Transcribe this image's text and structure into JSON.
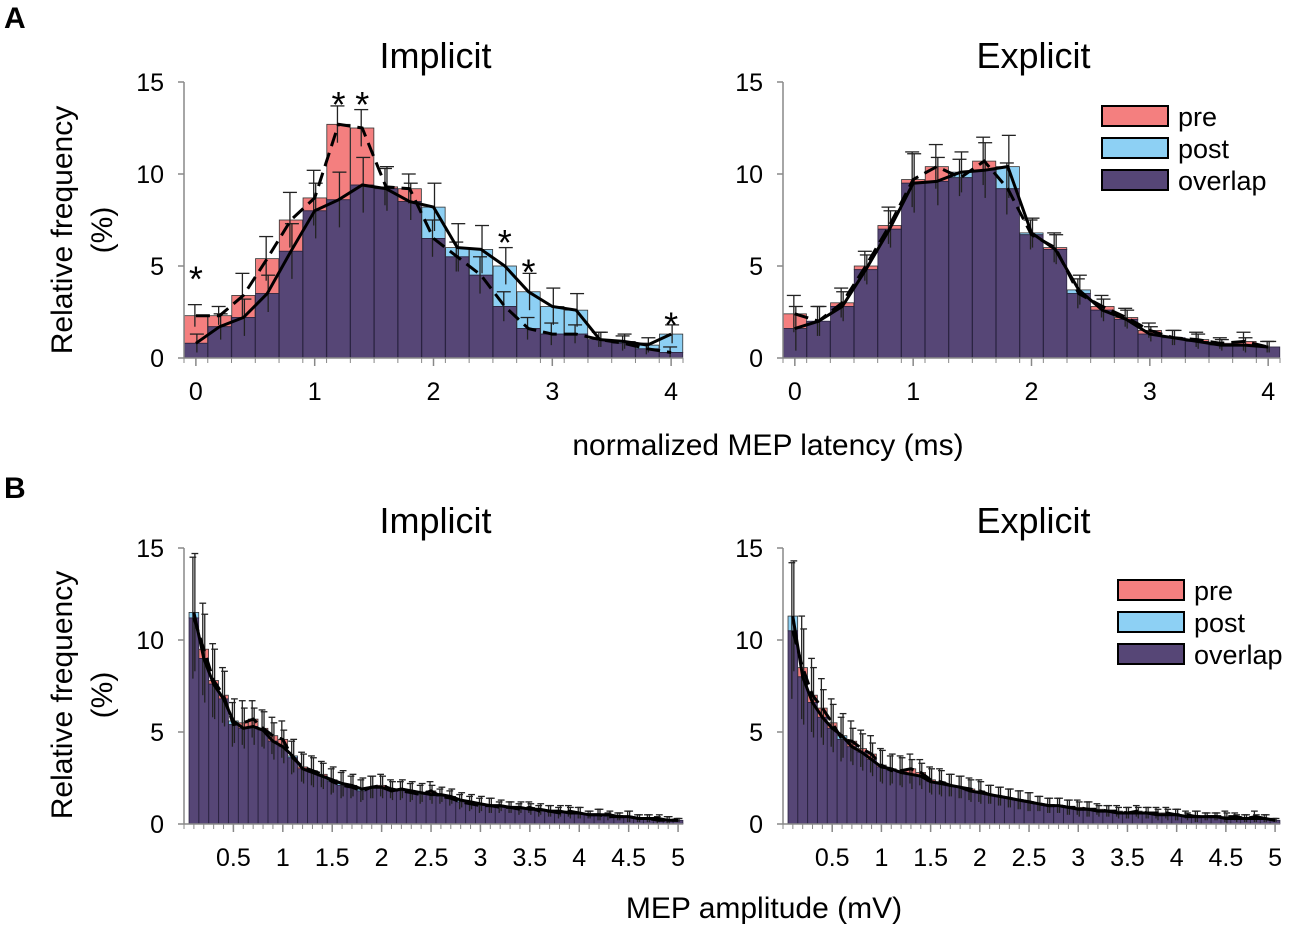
{
  "figure": {
    "panel_a_label": "A",
    "panel_b_label": "B",
    "ylabel_line1": "Relative frequency",
    "ylabel_line2": "(%)",
    "xlabel_a": "normalized MEP latency (ms)",
    "xlabel_b": "MEP amplitude (mV)",
    "legend": [
      "pre",
      "post",
      "overlap"
    ]
  },
  "colors": {
    "pre": "#f47f7f",
    "post": "#8dd0f4",
    "overlap": "#564676"
  },
  "chart_data": [
    {
      "id": "A-implicit",
      "type": "bar",
      "title": "Implicit",
      "ylim": [
        0,
        15
      ],
      "yticks": [
        0,
        5,
        10,
        15
      ],
      "xlim": [
        -0.1,
        4.1
      ],
      "xticks": [
        0,
        1,
        2,
        3,
        4
      ],
      "xticklabels": [
        "0",
        "1",
        "2",
        "3",
        "4"
      ],
      "bin_width": 0.2,
      "x": [
        0,
        0.2,
        0.4,
        0.6,
        0.8,
        1.0,
        1.2,
        1.4,
        1.6,
        1.8,
        2.0,
        2.2,
        2.4,
        2.6,
        2.8,
        3.0,
        3.2,
        3.4,
        3.6,
        3.8,
        4.0
      ],
      "series": [
        {
          "name": "pre",
          "values": [
            2.3,
            2.3,
            3.4,
            5.4,
            7.5,
            8.7,
            12.7,
            12.5,
            9.3,
            9.2,
            6.5,
            5.5,
            4.5,
            2.8,
            1.6,
            1.3,
            1.3,
            1.0,
            0.8,
            0.5,
            0.3
          ],
          "error": [
            0.6,
            0.5,
            1.2,
            1.2,
            1.5,
            1.5,
            1.0,
            1.0,
            1.0,
            0.8,
            1.0,
            0.8,
            1.0,
            0.8,
            0.6,
            0.6,
            0.5,
            0.4,
            0.4,
            0.3,
            0.3
          ]
        },
        {
          "name": "post",
          "values": [
            0.8,
            1.7,
            2.2,
            3.5,
            5.8,
            8.0,
            8.6,
            9.4,
            9.2,
            8.5,
            8.2,
            6.0,
            5.9,
            5.0,
            3.6,
            2.8,
            2.6,
            1.0,
            0.9,
            0.7,
            1.3
          ],
          "error": [
            0.5,
            0.7,
            1.0,
            1.0,
            1.5,
            1.5,
            1.5,
            1.5,
            1.2,
            1.0,
            1.3,
            1.3,
            1.3,
            1.0,
            1.0,
            1.0,
            0.9,
            0.4,
            0.4,
            0.4,
            0.5
          ]
        }
      ],
      "annotations": [
        {
          "x": 0,
          "y": 4.8,
          "text": "*"
        },
        {
          "x": 1.2,
          "y": 14.3,
          "text": "*"
        },
        {
          "x": 1.4,
          "y": 14.3,
          "text": "*"
        },
        {
          "x": 2.6,
          "y": 6.8,
          "text": "*"
        },
        {
          "x": 2.8,
          "y": 5.2,
          "text": "*"
        },
        {
          "x": 4.0,
          "y": 2.3,
          "text": "*"
        }
      ],
      "legend": false
    },
    {
      "id": "A-explicit",
      "type": "bar",
      "title": "Explicit",
      "ylim": [
        0,
        15
      ],
      "yticks": [
        0,
        5,
        10,
        15
      ],
      "xlim": [
        -0.1,
        4.1
      ],
      "xticks": [
        0,
        1,
        2,
        3,
        4
      ],
      "xticklabels": [
        "0",
        "1",
        "2",
        "3",
        "4"
      ],
      "bin_width": 0.2,
      "x": [
        0,
        0.2,
        0.4,
        0.6,
        0.8,
        1.0,
        1.2,
        1.4,
        1.6,
        1.8,
        2.0,
        2.2,
        2.4,
        2.6,
        2.8,
        3.0,
        3.2,
        3.4,
        3.6,
        3.8,
        4.0
      ],
      "series": [
        {
          "name": "pre",
          "values": [
            2.4,
            2.0,
            3.0,
            5.0,
            7.2,
            9.7,
            10.4,
            9.8,
            10.7,
            9.2,
            6.7,
            6.0,
            3.5,
            2.8,
            2.2,
            1.5,
            1.1,
            1.0,
            0.8,
            0.9,
            0.6
          ],
          "error": [
            1.0,
            0.8,
            0.8,
            0.8,
            1.0,
            1.5,
            1.2,
            1.0,
            1.3,
            1.4,
            0.8,
            0.8,
            0.8,
            0.6,
            0.5,
            0.4,
            0.4,
            0.4,
            0.3,
            0.5,
            0.3
          ]
        },
        {
          "name": "post",
          "values": [
            1.6,
            2.0,
            2.8,
            4.8,
            7.0,
            9.5,
            9.6,
            10.1,
            10.2,
            10.4,
            6.8,
            5.9,
            3.7,
            2.6,
            2.1,
            1.3,
            1.1,
            0.9,
            0.7,
            0.7,
            0.6
          ],
          "error": [
            1.2,
            0.8,
            0.8,
            0.8,
            1.0,
            1.6,
            1.3,
            1.1,
            1.5,
            1.7,
            0.8,
            0.8,
            0.8,
            0.6,
            0.5,
            0.4,
            0.4,
            0.4,
            0.3,
            0.4,
            0.3
          ]
        }
      ],
      "annotations": [],
      "legend": true
    },
    {
      "id": "B-implicit",
      "type": "bar",
      "title": "Implicit",
      "ylim": [
        0,
        15
      ],
      "yticks": [
        0,
        5,
        10,
        15
      ],
      "xlim": [
        0,
        5.05
      ],
      "xticks": [
        0.5,
        1,
        1.5,
        2,
        2.5,
        3,
        3.5,
        4,
        4.5,
        5
      ],
      "xticklabels": [
        "0.5",
        "1",
        "1.5",
        "2",
        "2.5",
        "3",
        "3.5",
        "4",
        "4.5",
        "5"
      ],
      "bin_width": 0.1,
      "x": [
        0.1,
        0.2,
        0.3,
        0.4,
        0.5,
        0.6,
        0.7,
        0.8,
        0.9,
        1.0,
        1.1,
        1.2,
        1.3,
        1.4,
        1.5,
        1.6,
        1.7,
        1.8,
        1.9,
        2.0,
        2.1,
        2.2,
        2.3,
        2.4,
        2.5,
        2.6,
        2.7,
        2.8,
        2.9,
        3.0,
        3.1,
        3.2,
        3.3,
        3.4,
        3.5,
        3.6,
        3.7,
        3.8,
        3.9,
        4.0,
        4.1,
        4.2,
        4.3,
        4.4,
        4.5,
        4.6,
        4.7,
        4.8,
        4.9,
        5.0
      ],
      "series": [
        {
          "name": "pre",
          "values": [
            11.2,
            9.5,
            7.8,
            7.0,
            5.4,
            5.5,
            5.7,
            5.2,
            4.8,
            4.6,
            3.6,
            3.1,
            2.9,
            2.7,
            2.3,
            2.1,
            2.0,
            1.8,
            2.0,
            2.1,
            1.9,
            1.8,
            1.7,
            1.6,
            1.8,
            1.5,
            1.4,
            1.2,
            1.1,
            1.0,
            1.0,
            0.9,
            0.9,
            0.8,
            0.9,
            0.7,
            0.7,
            0.6,
            0.7,
            0.6,
            0.5,
            0.5,
            0.4,
            0.4,
            0.4,
            0.3,
            0.3,
            0.2,
            0.2,
            0.2
          ],
          "error": [
            3.3,
            2.5,
            2.0,
            1.5,
            1.2,
            1.2,
            1.0,
            1.0,
            1.0,
            1.0,
            0.9,
            0.8,
            0.8,
            0.7,
            0.7,
            0.7,
            0.6,
            0.6,
            0.6,
            0.6,
            0.5,
            0.5,
            0.5,
            0.5,
            0.5,
            0.4,
            0.4,
            0.4,
            0.4,
            0.4,
            0.4,
            0.3,
            0.3,
            0.3,
            0.3,
            0.3,
            0.3,
            0.3,
            0.3,
            0.3,
            0.2,
            0.3,
            0.2,
            0.2,
            0.3,
            0.2,
            0.2,
            0.2,
            0.2,
            0.1
          ]
        },
        {
          "name": "post",
          "values": [
            11.5,
            9.0,
            7.6,
            6.8,
            5.6,
            5.2,
            5.3,
            5.1,
            4.5,
            4.2,
            3.7,
            3.0,
            2.8,
            2.6,
            2.4,
            2.2,
            2.1,
            1.9,
            2.0,
            2.0,
            1.8,
            1.9,
            1.8,
            1.7,
            1.6,
            1.6,
            1.5,
            1.3,
            1.2,
            1.1,
            1.0,
            1.0,
            0.9,
            0.9,
            0.8,
            0.8,
            0.7,
            0.7,
            0.6,
            0.6,
            0.5,
            0.5,
            0.5,
            0.4,
            0.4,
            0.3,
            0.3,
            0.3,
            0.2,
            0.2
          ],
          "error": [
            3.2,
            2.4,
            1.9,
            1.5,
            1.2,
            1.1,
            1.0,
            1.0,
            1.0,
            0.9,
            0.9,
            0.8,
            0.8,
            0.7,
            0.7,
            0.7,
            0.6,
            0.6,
            0.6,
            0.6,
            0.5,
            0.5,
            0.5,
            0.5,
            0.5,
            0.4,
            0.4,
            0.4,
            0.4,
            0.4,
            0.4,
            0.3,
            0.3,
            0.3,
            0.3,
            0.3,
            0.3,
            0.3,
            0.3,
            0.3,
            0.2,
            0.3,
            0.2,
            0.2,
            0.3,
            0.2,
            0.2,
            0.2,
            0.2,
            0.1
          ]
        }
      ],
      "annotations": [],
      "legend": false
    },
    {
      "id": "B-explicit",
      "type": "bar",
      "title": "Explicit",
      "ylim": [
        0,
        15
      ],
      "yticks": [
        0,
        5,
        10,
        15
      ],
      "xlim": [
        0,
        5.05
      ],
      "xticks": [
        0.5,
        1,
        1.5,
        2,
        2.5,
        3,
        3.5,
        4,
        4.5,
        5
      ],
      "xticklabels": [
        "0.5",
        "1",
        "1.5",
        "2",
        "2.5",
        "3",
        "3.5",
        "4",
        "4.5",
        "5"
      ],
      "bin_width": 0.1,
      "x": [
        0.1,
        0.2,
        0.3,
        0.4,
        0.5,
        0.6,
        0.7,
        0.8,
        0.9,
        1.0,
        1.1,
        1.2,
        1.3,
        1.4,
        1.5,
        1.6,
        1.7,
        1.8,
        1.9,
        2.0,
        2.1,
        2.2,
        2.3,
        2.4,
        2.5,
        2.6,
        2.7,
        2.8,
        2.9,
        3.0,
        3.1,
        3.2,
        3.3,
        3.4,
        3.5,
        3.6,
        3.7,
        3.8,
        3.9,
        4.0,
        4.1,
        4.2,
        4.3,
        4.4,
        4.5,
        4.6,
        4.7,
        4.8,
        4.9,
        5.0
      ],
      "series": [
        {
          "name": "pre",
          "values": [
            10.5,
            8.5,
            7.0,
            6.3,
            5.5,
            4.6,
            4.5,
            4.1,
            3.8,
            3.2,
            2.9,
            2.9,
            3.0,
            2.8,
            2.4,
            2.3,
            2.1,
            2.0,
            1.9,
            1.8,
            1.6,
            1.5,
            1.4,
            1.3,
            1.2,
            1.1,
            1.0,
            1.0,
            0.9,
            0.9,
            0.8,
            0.8,
            0.7,
            0.7,
            0.6,
            0.7,
            0.6,
            0.6,
            0.6,
            0.5,
            0.5,
            0.4,
            0.4,
            0.4,
            0.4,
            0.4,
            0.3,
            0.4,
            0.3,
            0.2
          ],
          "error": [
            3.7,
            2.8,
            2.0,
            1.6,
            1.3,
            1.2,
            1.1,
            1.0,
            1.0,
            0.9,
            0.8,
            0.8,
            0.8,
            0.7,
            0.7,
            0.7,
            0.6,
            0.6,
            0.6,
            0.6,
            0.5,
            0.5,
            0.5,
            0.5,
            0.5,
            0.4,
            0.4,
            0.4,
            0.4,
            0.4,
            0.4,
            0.3,
            0.3,
            0.3,
            0.3,
            0.3,
            0.3,
            0.3,
            0.3,
            0.3,
            0.2,
            0.3,
            0.2,
            0.2,
            0.3,
            0.2,
            0.2,
            0.3,
            0.2,
            0.1
          ]
        },
        {
          "name": "post",
          "values": [
            11.3,
            8.0,
            6.6,
            5.8,
            5.2,
            4.8,
            4.2,
            3.9,
            3.5,
            3.1,
            3.0,
            2.8,
            2.7,
            2.6,
            2.3,
            2.2,
            2.1,
            2.0,
            1.8,
            1.7,
            1.6,
            1.5,
            1.4,
            1.3,
            1.2,
            1.1,
            1.0,
            1.0,
            0.9,
            0.8,
            0.8,
            0.7,
            0.7,
            0.6,
            0.6,
            0.6,
            0.6,
            0.5,
            0.5,
            0.5,
            0.4,
            0.4,
            0.4,
            0.4,
            0.3,
            0.3,
            0.3,
            0.3,
            0.3,
            0.2
          ],
          "error": [
            3.0,
            2.6,
            1.9,
            1.5,
            1.3,
            1.2,
            1.0,
            1.0,
            0.9,
            0.9,
            0.8,
            0.8,
            0.8,
            0.7,
            0.7,
            0.7,
            0.6,
            0.6,
            0.6,
            0.6,
            0.5,
            0.5,
            0.5,
            0.5,
            0.5,
            0.4,
            0.4,
            0.4,
            0.4,
            0.4,
            0.4,
            0.3,
            0.3,
            0.3,
            0.3,
            0.3,
            0.3,
            0.3,
            0.3,
            0.3,
            0.2,
            0.3,
            0.2,
            0.2,
            0.3,
            0.2,
            0.2,
            0.2,
            0.2,
            0.1
          ]
        }
      ],
      "annotations": [],
      "legend": true
    }
  ]
}
